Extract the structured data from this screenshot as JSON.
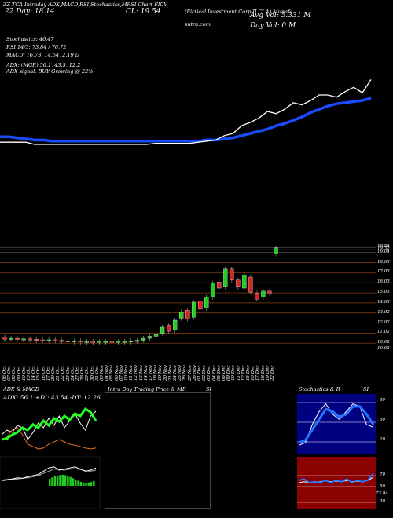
{
  "header": {
    "line1": "(Fictical Investment Corp II Cl A) Munafa",
    "line1b": "sutra.com",
    "ticker_info": "ZZ-TCA Intraday ADX,MACD,RSI,Stochastics,MRSI Chart FICV",
    "date_vals": "22 Day: 18.14",
    "close_label": "CL: 19.54",
    "avg_vol": "Avg Vol: 5.331 M",
    "day_vol": "Day Vol: 0  M"
  },
  "indicators": {
    "stochastics": "Stochastics: 46.47",
    "rsi": "RSI 14/3: 73.84 / 76.72",
    "macd": "MACD: 16.73,  14.54,  2.19 D",
    "adx": "ADX:                  (MGR) 56.1, 43.5, 12.2",
    "adx_signal": "ADX signal:                      BUY Growing @ 22%"
  },
  "price_levels": [
    "19.54",
    "19.32",
    "19.04",
    "18.03",
    "17.03",
    "16.03",
    "15.03",
    "14.03",
    "13.02",
    "12.02",
    "11.02",
    "10.02",
    "10.02"
  ],
  "x_dates": [
    "06 Oct",
    "07 Oct",
    "08 Oct",
    "09 Oct",
    "10 Oct",
    "13 Oct",
    "14 Oct",
    "15 Oct",
    "16 Oct",
    "17 Oct",
    "20 Oct",
    "21 Oct",
    "22 Oct",
    "23 Oct",
    "24 Oct",
    "27 Oct",
    "28 Oct",
    "29 Oct",
    "30 Oct",
    "31 Oct",
    "03 Nov",
    "04 Nov",
    "05 Nov",
    "06 Nov",
    "07 Nov",
    "10 Nov",
    "11 Nov",
    "12 Nov",
    "13 Nov",
    "14 Nov",
    "17 Nov",
    "18 Nov",
    "19 Nov",
    "20 Nov",
    "21 Nov",
    "24 Nov",
    "25 Nov",
    "26 Nov",
    "27 Nov",
    "28 Nov",
    "01 Dec",
    "02 Dec",
    "03 Dec",
    "04 Dec",
    "05 Dec",
    "08 Dec",
    "09 Dec",
    "10 Dec",
    "11 Dec",
    "12 Dec",
    "15 Dec",
    "16 Dec",
    "17 Dec",
    "18 Dec",
    "19 Dec",
    "22 Dec"
  ],
  "panels": {
    "adx_title": "ADX  & MACD",
    "adx_values": "ADX: 56.1  +DI: 43.54  -DY: 12.26",
    "intraday_title": "Intra  Day Trading Price  & MR",
    "intraday_title2": "SI",
    "stoch_title": "Stochastics & R",
    "stoch_title2": "SI",
    "stoch_levels": [
      "80",
      "50",
      "20"
    ],
    "rsi_levels": [
      "70",
      "50",
      "30"
    ],
    "rsi_value": "73.84"
  },
  "colors": {
    "ema": "#1a4cff",
    "price_line": "#ffffff",
    "up": "#22cc22",
    "down": "#dd2222",
    "level_line": "#8b4513",
    "rsi_panel_bg": "#8b0000",
    "stoch_panel_bg": "#000080"
  },
  "chart_data": {
    "type": "candlestick",
    "candles": [
      {
        "o": 10.6,
        "c": 10.4
      },
      {
        "o": 10.4,
        "c": 10.5
      },
      {
        "o": 10.5,
        "c": 10.4
      },
      {
        "o": 10.4,
        "c": 10.45
      },
      {
        "o": 10.45,
        "c": 10.4
      },
      {
        "o": 10.4,
        "c": 10.35
      },
      {
        "o": 10.35,
        "c": 10.3
      },
      {
        "o": 10.3,
        "c": 10.35
      },
      {
        "o": 10.35,
        "c": 10.3
      },
      {
        "o": 10.3,
        "c": 10.25
      },
      {
        "o": 10.25,
        "c": 10.2
      },
      {
        "o": 10.2,
        "c": 10.25
      },
      {
        "o": 10.25,
        "c": 10.2
      },
      {
        "o": 10.2,
        "c": 10.2
      },
      {
        "o": 10.2,
        "c": 10.15
      },
      {
        "o": 10.15,
        "c": 10.2
      },
      {
        "o": 10.2,
        "c": 10.2
      },
      {
        "o": 10.2,
        "c": 10.15
      },
      {
        "o": 10.15,
        "c": 10.2
      },
      {
        "o": 10.2,
        "c": 10.2
      },
      {
        "o": 10.2,
        "c": 10.25
      },
      {
        "o": 10.25,
        "c": 10.3
      },
      {
        "o": 10.3,
        "c": 10.5
      },
      {
        "o": 10.5,
        "c": 10.7
      },
      {
        "o": 10.7,
        "c": 10.9
      },
      {
        "o": 11.0,
        "c": 11.6
      },
      {
        "o": 11.8,
        "c": 11.2
      },
      {
        "o": 11.3,
        "c": 12.3
      },
      {
        "o": 12.5,
        "c": 13.1
      },
      {
        "o": 13.3,
        "c": 12.4
      },
      {
        "o": 12.6,
        "c": 14.1
      },
      {
        "o": 14.2,
        "c": 13.4
      },
      {
        "o": 13.5,
        "c": 14.6
      },
      {
        "o": 14.6,
        "c": 16.0
      },
      {
        "o": 16.1,
        "c": 15.5
      },
      {
        "o": 15.6,
        "c": 17.4
      },
      {
        "o": 17.4,
        "c": 16.3
      },
      {
        "o": 16.3,
        "c": 15.6
      },
      {
        "o": 15.5,
        "c": 16.8
      },
      {
        "o": 16.6,
        "c": 15.1
      },
      {
        "o": 15.0,
        "c": 14.4
      },
      {
        "o": 14.6,
        "c": 15.2
      },
      {
        "o": 15.2,
        "c": 15.0
      },
      {
        "o": 18.9,
        "c": 19.5
      }
    ],
    "ylim": [
      9.8,
      19.8
    ],
    "indicator_line": [
      0.58,
      0.58,
      0.58,
      0.58,
      0.6,
      0.6,
      0.6,
      0.6,
      0.6,
      0.6,
      0.6,
      0.6,
      0.6,
      0.6,
      0.6,
      0.6,
      0.6,
      0.6,
      0.59,
      0.59,
      0.59,
      0.59,
      0.59,
      0.58,
      0.57,
      0.56,
      0.52,
      0.5,
      0.43,
      0.4,
      0.36,
      0.3,
      0.32,
      0.28,
      0.22,
      0.24,
      0.2,
      0.15,
      0.15,
      0.17,
      0.12,
      0.08,
      0.13,
      0.01
    ],
    "ema_line": [
      0.53,
      0.53,
      0.54,
      0.55,
      0.56,
      0.56,
      0.57,
      0.57,
      0.57,
      0.57,
      0.57,
      0.57,
      0.57,
      0.57,
      0.57,
      0.57,
      0.57,
      0.57,
      0.57,
      0.57,
      0.57,
      0.57,
      0.57,
      0.57,
      0.56,
      0.56,
      0.55,
      0.54,
      0.52,
      0.5,
      0.48,
      0.46,
      0.43,
      0.41,
      0.38,
      0.35,
      0.31,
      0.28,
      0.25,
      0.23,
      0.22,
      0.21,
      0.2,
      0.18
    ]
  }
}
